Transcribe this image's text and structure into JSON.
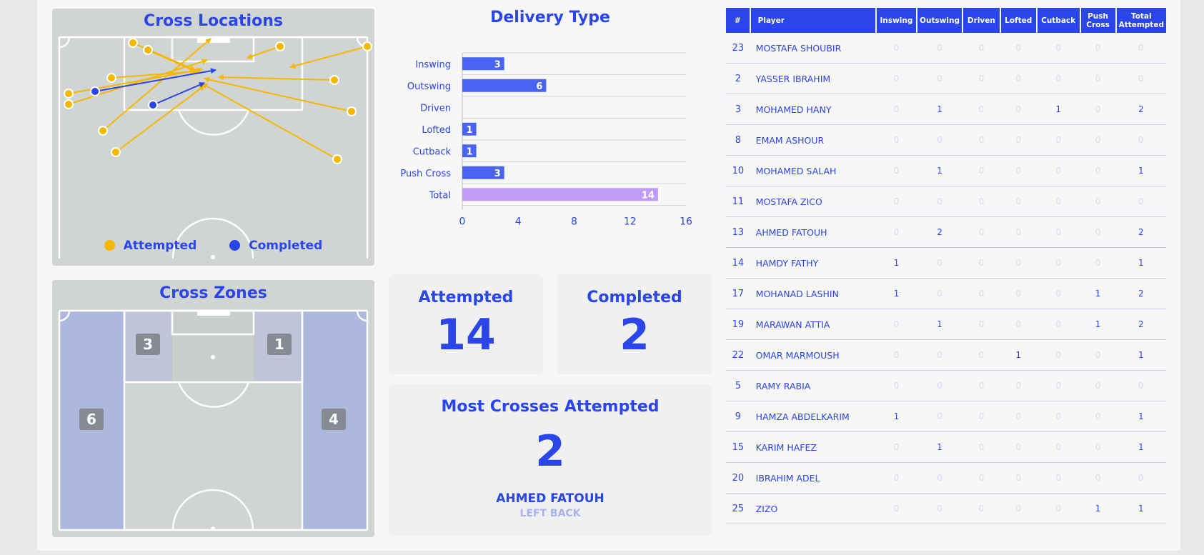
{
  "cross_locations": {
    "title": "Cross Locations",
    "legend": [
      {
        "label": "Attempted",
        "color": "#f5b800"
      },
      {
        "label": "Completed",
        "color": "#2a45e8"
      }
    ]
  },
  "cross_zones": {
    "title": "Cross Zones",
    "zones": [
      {
        "id": "left-box",
        "value": "3"
      },
      {
        "id": "right-box",
        "value": "1"
      },
      {
        "id": "left-wing",
        "value": "6"
      },
      {
        "id": "right-wing",
        "value": "4"
      }
    ]
  },
  "chart_data": {
    "type": "bar",
    "orientation": "horizontal",
    "title": "Delivery Type",
    "categories": [
      "Inswing",
      "Outswing",
      "Driven",
      "Lofted",
      "Cutback",
      "Push Cross",
      "Total"
    ],
    "values": [
      3,
      6,
      0,
      1,
      1,
      3,
      14
    ],
    "xlim": [
      0,
      16
    ],
    "xticks": [
      0,
      4,
      8,
      12,
      16
    ],
    "grid": true,
    "colors": {
      "bar": "#4a63f0",
      "total": "#c09cf6"
    }
  },
  "stats": {
    "attempted_label": "Attempted",
    "attempted_value": "14",
    "completed_label": "Completed",
    "completed_value": "2"
  },
  "most_crosses": {
    "title": "Most Crosses Attempted",
    "value": "2",
    "player": "AHMED FATOUH",
    "position": "LEFT BACK"
  },
  "table": {
    "headers": [
      "#",
      "Player",
      "Inswing",
      "Outswing",
      "Driven",
      "Lofted",
      "Cutback",
      "Push Cross",
      "Total Attempted"
    ],
    "rows": [
      [
        "23",
        "MOSTAFA SHOUBIR",
        "0",
        "0",
        "0",
        "0",
        "0",
        "0",
        "0"
      ],
      [
        "2",
        "YASSER IBRAHIM",
        "0",
        "0",
        "0",
        "0",
        "0",
        "0",
        "0"
      ],
      [
        "3",
        "MOHAMED HANY",
        "0",
        "1",
        "0",
        "0",
        "1",
        "0",
        "2"
      ],
      [
        "8",
        "EMAM ASHOUR",
        "0",
        "0",
        "0",
        "0",
        "0",
        "0",
        "0"
      ],
      [
        "10",
        "MOHAMED SALAH",
        "0",
        "1",
        "0",
        "0",
        "0",
        "0",
        "1"
      ],
      [
        "11",
        "MOSTAFA ZICO",
        "0",
        "0",
        "0",
        "0",
        "0",
        "0",
        "0"
      ],
      [
        "13",
        "AHMED FATOUH",
        "0",
        "2",
        "0",
        "0",
        "0",
        "0",
        "2"
      ],
      [
        "14",
        "HAMDY FATHY",
        "1",
        "0",
        "0",
        "0",
        "0",
        "0",
        "1"
      ],
      [
        "17",
        "MOHANAD LASHIN",
        "1",
        "0",
        "0",
        "0",
        "0",
        "1",
        "2"
      ],
      [
        "19",
        "MARAWAN ATTIA",
        "0",
        "1",
        "0",
        "0",
        "0",
        "1",
        "2"
      ],
      [
        "22",
        "OMAR MARMOUSH",
        "0",
        "0",
        "0",
        "1",
        "0",
        "0",
        "1"
      ],
      [
        "5",
        "RAMY RABIA",
        "0",
        "0",
        "0",
        "0",
        "0",
        "0",
        "0"
      ],
      [
        "9",
        "HAMZA ABDELKARIM",
        "1",
        "0",
        "0",
        "0",
        "0",
        "0",
        "1"
      ],
      [
        "15",
        "KARIM HAFEZ",
        "0",
        "1",
        "0",
        "0",
        "0",
        "0",
        "1"
      ],
      [
        "20",
        "IBRAHIM ADEL",
        "0",
        "0",
        "0",
        "0",
        "0",
        "0",
        "0"
      ],
      [
        "25",
        "ZIZO",
        "0",
        "0",
        "0",
        "0",
        "0",
        "1",
        "1"
      ]
    ]
  }
}
